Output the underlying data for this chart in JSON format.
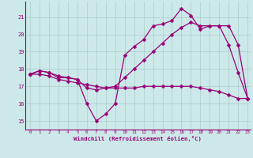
{
  "xlabel": "Windchill (Refroidissement éolien,°C)",
  "background_color": "#cce8e8",
  "grid_color": "#aacccc",
  "line_color": "#990077",
  "xlim": [
    -0.5,
    23.3
  ],
  "ylim": [
    14.5,
    21.9
  ],
  "yticks": [
    15,
    16,
    17,
    18,
    19,
    20,
    21
  ],
  "xticks": [
    0,
    1,
    2,
    3,
    4,
    5,
    6,
    7,
    8,
    9,
    10,
    11,
    12,
    13,
    14,
    15,
    16,
    17,
    18,
    19,
    20,
    21,
    22,
    23
  ],
  "series1_x": [
    0,
    1,
    2,
    3,
    4,
    5,
    6,
    7,
    8,
    9,
    10,
    11,
    12,
    13,
    14,
    15,
    16,
    17,
    18,
    19,
    20,
    21,
    22,
    23
  ],
  "series1_y": [
    17.7,
    17.9,
    17.8,
    17.5,
    17.5,
    17.4,
    16.0,
    15.0,
    15.4,
    16.0,
    18.8,
    19.3,
    19.7,
    20.5,
    20.6,
    20.8,
    21.5,
    21.1,
    20.3,
    20.5,
    20.5,
    19.4,
    17.8,
    16.3
  ],
  "series2_x": [
    0,
    1,
    2,
    3,
    4,
    5,
    6,
    7,
    8,
    9,
    10,
    11,
    12,
    13,
    14,
    15,
    16,
    17,
    18,
    19,
    20,
    21,
    22,
    23
  ],
  "series2_y": [
    17.7,
    17.9,
    17.8,
    17.6,
    17.5,
    17.4,
    16.9,
    16.8,
    16.9,
    17.0,
    17.5,
    18.0,
    18.5,
    19.0,
    19.5,
    20.0,
    20.4,
    20.7,
    20.5,
    20.5,
    20.5,
    20.5,
    19.4,
    16.3
  ],
  "series3_x": [
    0,
    1,
    2,
    3,
    4,
    5,
    6,
    7,
    8,
    9,
    10,
    11,
    12,
    13,
    14,
    15,
    16,
    17,
    18,
    19,
    20,
    21,
    22,
    23
  ],
  "series3_y": [
    17.7,
    17.7,
    17.6,
    17.4,
    17.3,
    17.2,
    17.1,
    17.0,
    16.9,
    16.9,
    16.9,
    16.9,
    17.0,
    17.0,
    17.0,
    17.0,
    17.0,
    17.0,
    16.9,
    16.8,
    16.7,
    16.5,
    16.3,
    16.3
  ]
}
